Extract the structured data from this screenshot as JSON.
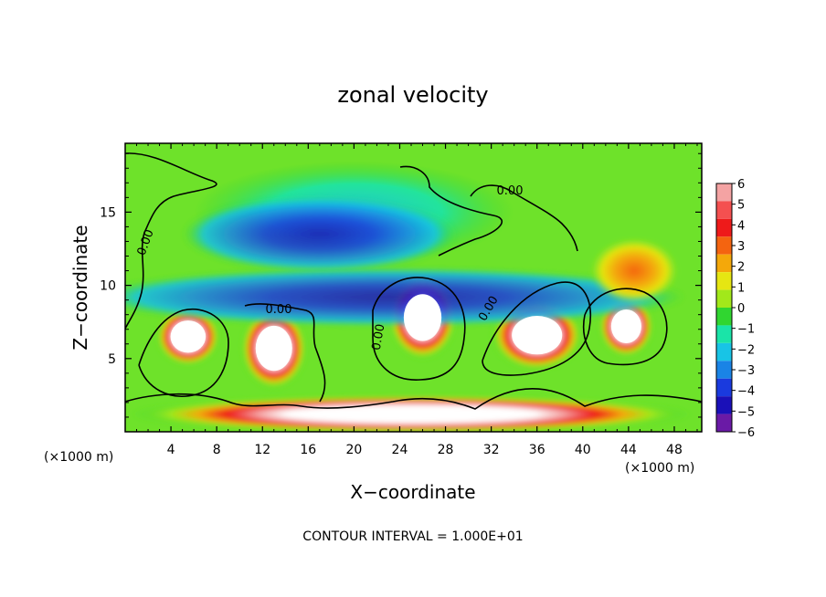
{
  "chart_data": {
    "type": "heatmap",
    "title": "zonal velocity",
    "xlabel": "X−coordinate",
    "ylabel": "Z−coordinate",
    "x_unit_left": "(×1000 m)",
    "x_unit_right": "(×1000 m)",
    "footer": "CONTOUR INTERVAL = 1.000E+01",
    "xlim": [
      0,
      50.4
    ],
    "ylim": [
      0,
      19.7
    ],
    "x_ticks": [
      4,
      8,
      12,
      16,
      20,
      24,
      28,
      32,
      36,
      40,
      44,
      48
    ],
    "y_ticks": [
      5,
      10,
      15
    ],
    "contour_label": "0.00",
    "colorbar": {
      "levels": [
        6,
        5,
        4,
        3,
        2,
        1,
        0,
        -1,
        -2,
        -3,
        -4,
        -5,
        -6
      ],
      "colors": [
        "#f4a3a3",
        "#f45050",
        "#ee1a1a",
        "#f46410",
        "#f4a80a",
        "#e6e612",
        "#a2e81a",
        "#30d630",
        "#1ae4a8",
        "#18c4e6",
        "#1a84e6",
        "#1a3ade",
        "#1a10b8",
        "#6a1aa6"
      ]
    },
    "regions": [
      {
        "kind": "positive-core",
        "cx": 5.5,
        "cz": 6.5,
        "rx": 2.8,
        "rz": 2.0
      },
      {
        "kind": "positive-core",
        "cx": 13.0,
        "cz": 5.7,
        "rx": 2.9,
        "rz": 2.8
      },
      {
        "kind": "positive-core",
        "cx": 26.0,
        "cz": 7.8,
        "rx": 3.0,
        "rz": 2.9
      },
      {
        "kind": "positive-core",
        "cx": 36.0,
        "cz": 6.6,
        "rx": 4.0,
        "rz": 2.4
      },
      {
        "kind": "positive-core",
        "cx": 43.8,
        "cz": 7.2,
        "rx": 2.4,
        "rz": 2.1
      },
      {
        "kind": "negative-band",
        "cx": 23.0,
        "cz": 9.2,
        "rx": 26.0,
        "rz": 2.0
      },
      {
        "kind": "negative-band",
        "cx": 17.0,
        "cz": 13.5,
        "rx": 12.0,
        "rz": 2.6
      },
      {
        "kind": "positive-band",
        "cx": 25.0,
        "cz": 1.2,
        "rx": 24.5,
        "rz": 1.3
      },
      {
        "kind": "positive-upper",
        "cx": 44.5,
        "cz": 11.0,
        "rx": 3.8,
        "rz": 2.2
      }
    ]
  }
}
